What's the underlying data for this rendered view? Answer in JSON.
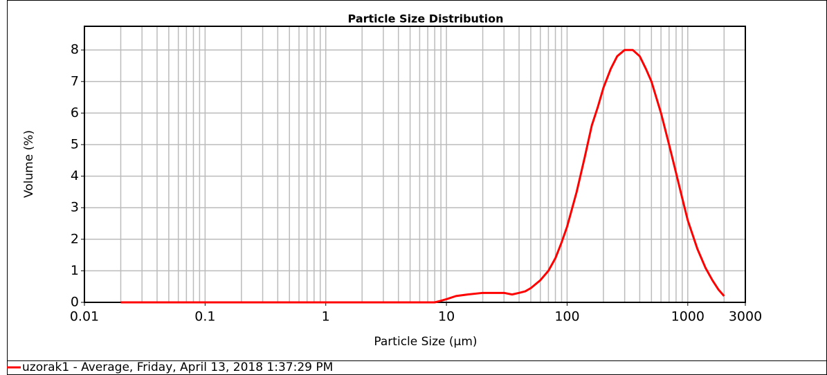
{
  "chart_data": {
    "type": "line",
    "title": "Particle Size Distribution",
    "xlabel": "Particle Size (µm)",
    "ylabel": "Volume (%)",
    "xscale": "log",
    "xlim": [
      0.01,
      3000
    ],
    "xticks": [
      0.01,
      0.1,
      1,
      10,
      100,
      1000,
      3000
    ],
    "xminorticks": [
      0.02,
      0.03,
      0.04,
      0.05,
      0.06,
      0.07,
      0.08,
      0.09,
      0.2,
      0.3,
      0.4,
      0.5,
      0.6,
      0.7,
      0.8,
      0.9,
      2,
      3,
      4,
      5,
      6,
      7,
      8,
      9,
      20,
      30,
      40,
      50,
      60,
      70,
      80,
      90,
      200,
      300,
      400,
      500,
      600,
      700,
      800,
      900,
      2000
    ],
    "ylim": [
      0,
      8.75
    ],
    "yticks": [
      0,
      1,
      2,
      3,
      4,
      5,
      6,
      7,
      8
    ],
    "grid": true,
    "legend": "bottom-left",
    "x": [
      0.02,
      0.05,
      0.1,
      0.5,
      1,
      2,
      3,
      5,
      8,
      9,
      10,
      12,
      15,
      20,
      25,
      30,
      35,
      40,
      45,
      50,
      60,
      70,
      80,
      90,
      100,
      120,
      140,
      160,
      180,
      200,
      230,
      260,
      300,
      350,
      400,
      450,
      500,
      600,
      700,
      800,
      900,
      1000,
      1200,
      1400,
      1600,
      1800,
      2000
    ],
    "series": [
      {
        "name": "uzorak1 - Average, Friday, April 13, 2018 1:37:29 PM",
        "color": "#ff0000",
        "values": [
          0,
          0,
          0,
          0,
          0,
          0,
          0,
          0,
          0,
          0.05,
          0.1,
          0.2,
          0.25,
          0.3,
          0.3,
          0.3,
          0.25,
          0.3,
          0.35,
          0.45,
          0.7,
          1.0,
          1.4,
          1.9,
          2.4,
          3.5,
          4.6,
          5.6,
          6.2,
          6.8,
          7.4,
          7.8,
          8.0,
          8.0,
          7.8,
          7.4,
          7.0,
          6.0,
          5.0,
          4.1,
          3.3,
          2.6,
          1.7,
          1.1,
          0.7,
          0.4,
          0.2
        ]
      }
    ]
  }
}
